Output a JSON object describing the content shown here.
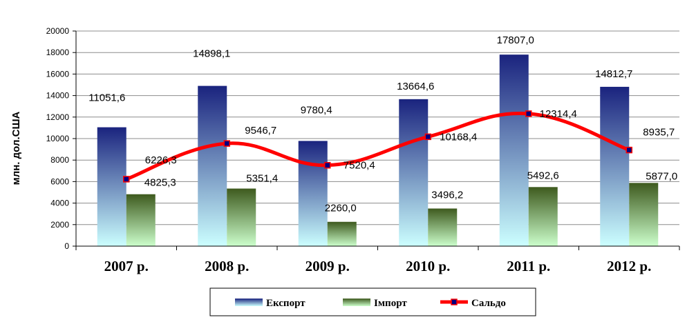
{
  "chart_data": {
    "type": "bar",
    "categories": [
      "2007 р.",
      "2008 р.",
      "2009 р.",
      "2010 р.",
      "2011 р.",
      "2012 р."
    ],
    "ylabel": "млн. дол.США",
    "ylim": [
      0,
      20000
    ],
    "yticks": [
      "0",
      "2000",
      "4000",
      "6000",
      "8000",
      "10000",
      "12000",
      "14000",
      "16000",
      "18000",
      "20000"
    ],
    "grid": true,
    "legend_position": "bottom",
    "series": [
      {
        "name": "Експорт",
        "kind": "bar",
        "values": [
          11051.6,
          14898.1,
          9780.4,
          13664.6,
          17807.0,
          14812.7
        ],
        "labels": [
          "11051,6",
          "14898,1",
          "9780,4",
          "13664,6",
          "17807,0",
          "14812,7"
        ],
        "color_top": "#1a237e",
        "color_bottom": "#ccffff"
      },
      {
        "name": "Імпорт",
        "kind": "bar",
        "values": [
          4825.3,
          5351.4,
          2260.0,
          3496.2,
          5492.6,
          5877.0
        ],
        "labels": [
          "4825,3",
          "5351,4",
          "2260,0",
          "3496,2",
          "5492,6",
          "5877,0"
        ],
        "color_top": "#3e5a1e",
        "color_bottom": "#ccffcc"
      },
      {
        "name": "Сальдо",
        "kind": "line",
        "values": [
          6226.3,
          9546.7,
          7520.4,
          10168.4,
          12314.4,
          8935.7
        ],
        "labels": [
          "6226,3",
          "9546,7",
          "7520,4",
          "10168,4",
          "12314,4",
          "8935,7"
        ],
        "color": "#ff0000",
        "marker_color": "#000080"
      }
    ]
  }
}
